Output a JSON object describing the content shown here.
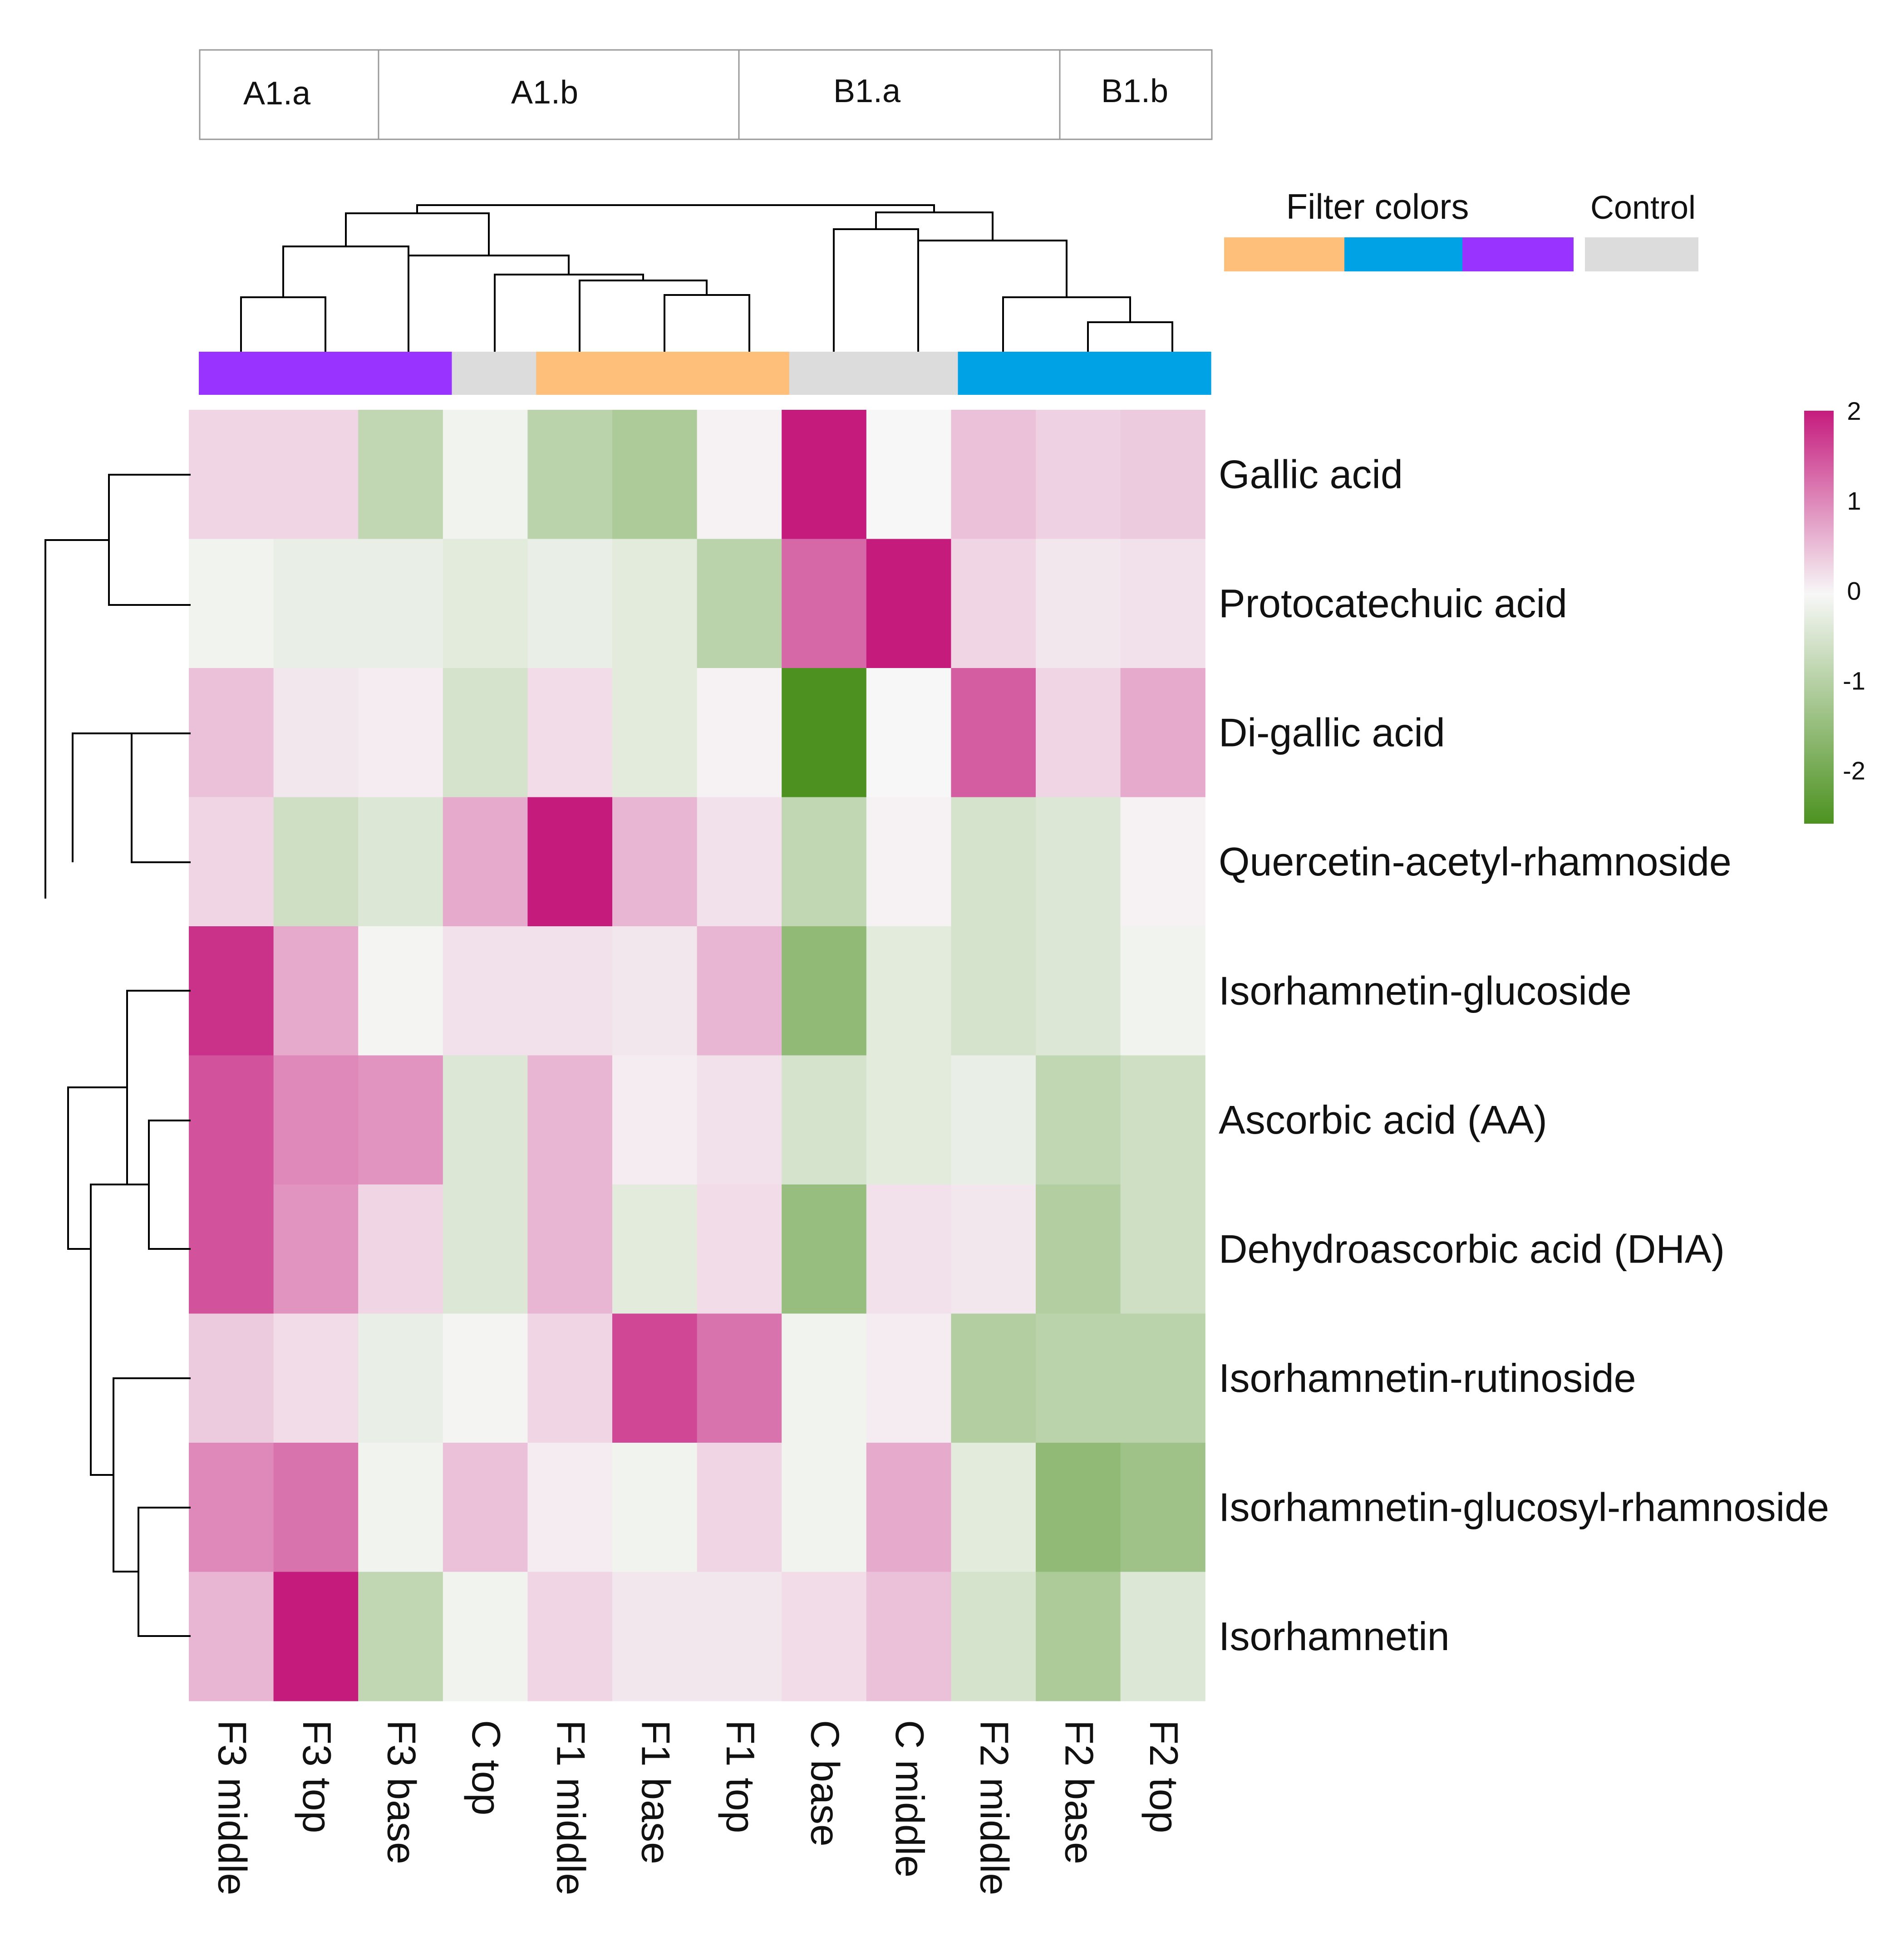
{
  "chart_data": {
    "type": "heatmap",
    "title": "",
    "column_groups": [
      "A1.a",
      "A1.b",
      "B1.a",
      "B1.b"
    ],
    "columns": [
      "F3 middle",
      "F3 top",
      "F3 base",
      "C top",
      "F1 middle",
      "F1 base",
      "F1 top",
      "C base",
      "C middle",
      "F2 middle",
      "F2 base",
      "F2 top"
    ],
    "column_categories": [
      "F3",
      "F3",
      "F3",
      "C",
      "F1",
      "F1",
      "F1",
      "C",
      "C",
      "F2",
      "F2",
      "F2"
    ],
    "rows": [
      "Gallic acid",
      "Protocatechuic acid",
      "Di-gallic acid",
      "Quercetin-acetyl-rhamnoside",
      "Isorhamnetin-glucoside",
      "Ascorbic acid (AA)",
      "Dehydroascorbic acid (DHA)",
      "Isorhamnetin-rutinoside",
      "Isorhamnetin-glucosyl-rhamnoside",
      "Isorhamnetin"
    ],
    "values": [
      [
        0.3,
        0.3,
        -0.8,
        -0.1,
        -0.9,
        -1.1,
        0.05,
        2.0,
        0.0,
        0.5,
        0.35,
        0.4
      ],
      [
        -0.1,
        -0.2,
        -0.2,
        -0.3,
        -0.2,
        -0.3,
        -0.9,
        1.3,
        2.0,
        0.3,
        0.15,
        0.2
      ],
      [
        0.5,
        0.15,
        0.1,
        -0.5,
        0.25,
        -0.3,
        0.05,
        -2.5,
        0.0,
        1.4,
        0.3,
        0.7
      ],
      [
        0.3,
        -0.6,
        -0.4,
        0.7,
        2.0,
        0.6,
        0.2,
        -0.8,
        0.05,
        -0.5,
        -0.4,
        0.05
      ],
      [
        1.8,
        0.7,
        -0.05,
        0.2,
        0.2,
        0.15,
        0.6,
        -1.5,
        -0.3,
        -0.5,
        -0.4,
        -0.1
      ],
      [
        1.5,
        1.0,
        0.9,
        -0.4,
        0.6,
        0.1,
        0.2,
        -0.5,
        -0.3,
        -0.2,
        -0.8,
        -0.6
      ],
      [
        1.5,
        0.9,
        0.3,
        -0.4,
        0.6,
        -0.3,
        0.25,
        -1.4,
        0.2,
        0.15,
        -1.0,
        -0.6
      ],
      [
        0.4,
        0.25,
        -0.2,
        -0.05,
        0.3,
        1.6,
        1.2,
        -0.1,
        0.1,
        -1.0,
        -0.9,
        -0.9
      ],
      [
        1.0,
        1.2,
        -0.1,
        0.5,
        0.1,
        -0.1,
        0.3,
        -0.1,
        0.7,
        -0.3,
        -1.5,
        -1.3
      ],
      [
        0.6,
        2.0,
        -0.8,
        -0.1,
        0.3,
        0.15,
        0.15,
        0.25,
        0.5,
        -0.5,
        -1.1,
        -0.4
      ]
    ],
    "color_scale": {
      "ticks": [
        "2",
        "1",
        "0",
        "-1",
        "-2"
      ],
      "tick_values": [
        2,
        1,
        0,
        -1,
        -2
      ],
      "range": [
        -2.5,
        2.0
      ],
      "colors": {
        "high": "#c51b7d",
        "mid": "#f7f7f7",
        "low": "#4d9221"
      }
    },
    "legend": {
      "filter_title": "Filter colors",
      "control_title": "Control",
      "category_colors": {
        "F1": "#fdbf7a",
        "F2": "#00a2e6",
        "F3": "#9933ff",
        "C": "#dcdcdc"
      }
    },
    "column_dendrogram": "((((F3 middle, F3 top), F3 base), (C top, (F1 middle, (F1 base, F1 top)))), ((C base, C middle), (F2 middle, (F2 base, F2 top))))",
    "row_dendrogram": "(((Gallic acid, Protocatechuic acid), (Di-gallic acid, Quercetin-acetyl-rhamnoside)), (Isorhamnetin-glucoside, ((Ascorbic acid (AA), Dehydroascorbic acid (DHA)), (Isorhamnetin-rutinoside, (Isorhamnetin-glucosyl-rhamnoside, Isorhamnetin)))))"
  }
}
